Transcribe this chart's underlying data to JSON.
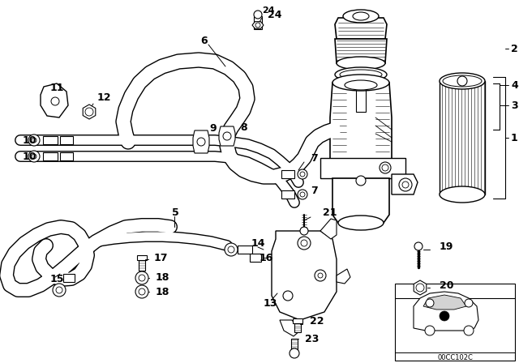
{
  "bg_color": "#ffffff",
  "diagram_code": "00CC102C",
  "fig_w": 6.4,
  "fig_h": 4.48,
  "dpi": 100
}
